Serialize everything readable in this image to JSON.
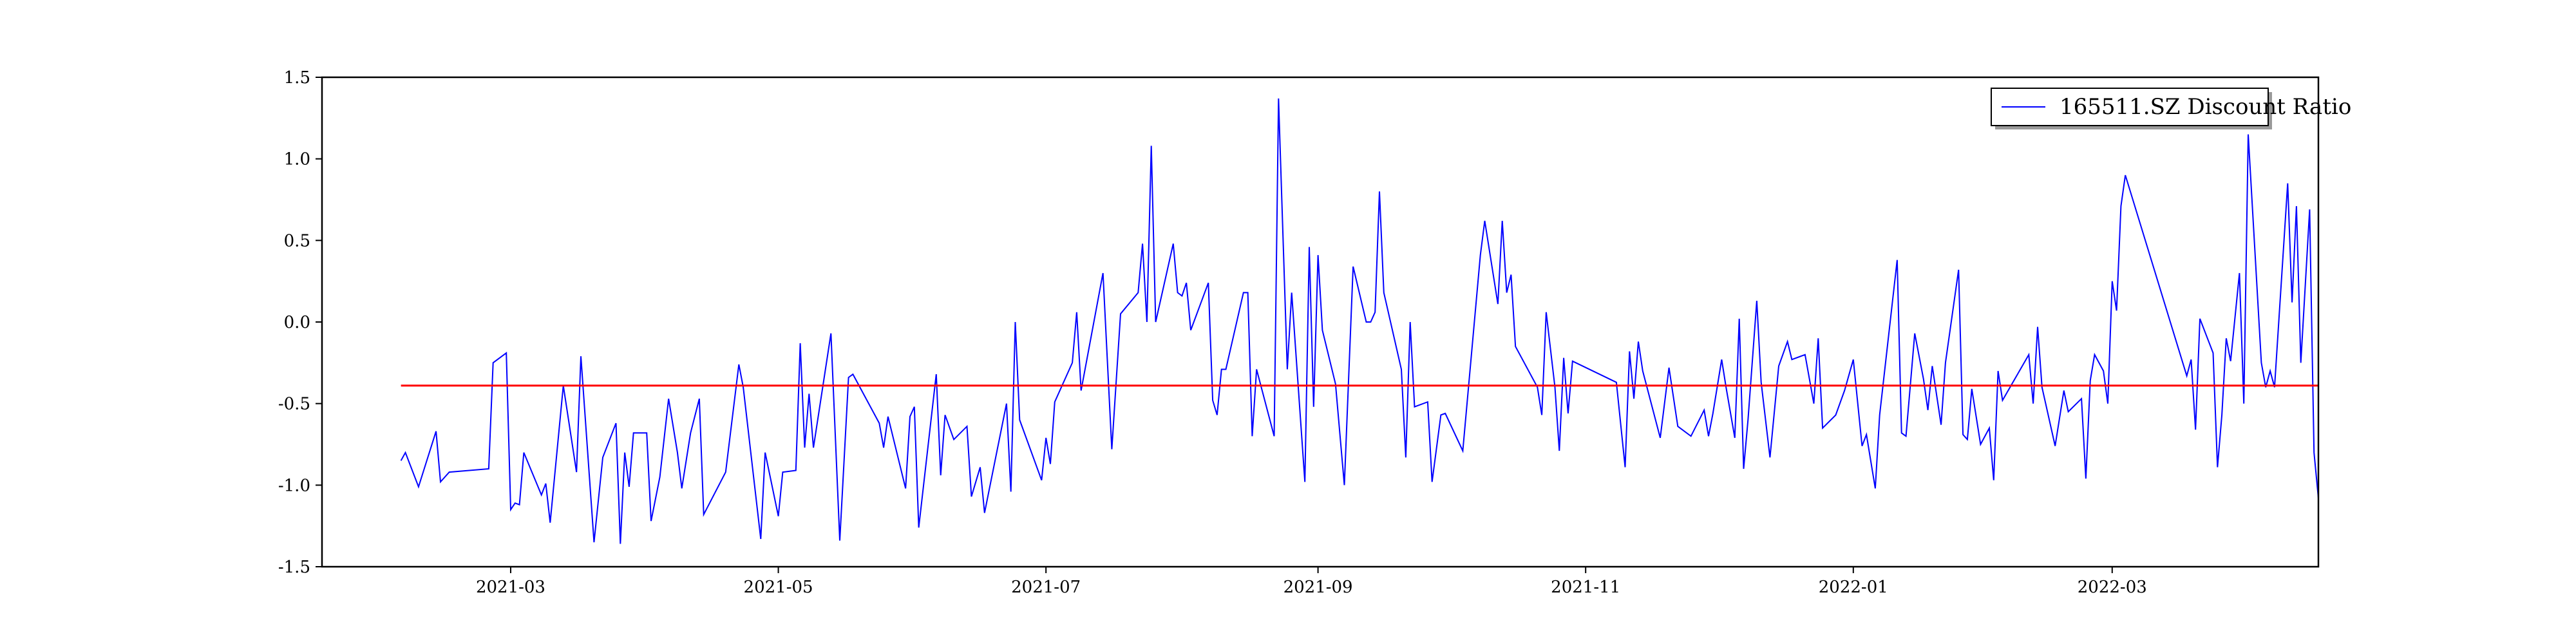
{
  "chart_data": {
    "type": "line",
    "title": "",
    "xlabel": "",
    "ylabel": "",
    "x_ticks": [
      "2021-03",
      "2021-05",
      "2021-07",
      "2021-09",
      "2021-11",
      "2022-01",
      "2022-03"
    ],
    "y_ticks": [
      "-1.5",
      "-1.0",
      "-0.5",
      "0.0",
      "0.5",
      "1.0",
      "1.5"
    ],
    "xlim": [
      "2021-01-17",
      "2022-04-17"
    ],
    "ylim": [
      -1.5,
      1.5
    ],
    "grid": false,
    "legend": {
      "position": "top-right",
      "entries": [
        "165511.SZ Discount Ratio"
      ]
    },
    "reference_line": {
      "value": -0.39,
      "color": "#ff0000"
    },
    "series": [
      {
        "name": "165511.SZ Discount Ratio",
        "color": "#0000ff",
        "points": [
          [
            "2021-02-04",
            -0.85
          ],
          [
            "2021-02-05",
            -0.8
          ],
          [
            "2021-02-08",
            -1.01
          ],
          [
            "2021-02-12",
            -0.67
          ],
          [
            "2021-02-13",
            -0.98
          ],
          [
            "2021-02-15",
            -0.92
          ],
          [
            "2021-02-24",
            -0.9
          ],
          [
            "2021-02-25",
            -0.25
          ],
          [
            "2021-02-28",
            -0.19
          ],
          [
            "2021-03-01",
            -1.15
          ],
          [
            "2021-03-02",
            -1.11
          ],
          [
            "2021-03-03",
            -1.12
          ],
          [
            "2021-03-04",
            -0.8
          ],
          [
            "2021-03-08",
            -1.06
          ],
          [
            "2021-03-09",
            -0.99
          ],
          [
            "2021-03-10",
            -1.23
          ],
          [
            "2021-03-13",
            -0.39
          ],
          [
            "2021-03-16",
            -0.92
          ],
          [
            "2021-03-17",
            -0.21
          ],
          [
            "2021-03-20",
            -1.35
          ],
          [
            "2021-03-22",
            -0.83
          ],
          [
            "2021-03-25",
            -0.62
          ],
          [
            "2021-03-26",
            -1.36
          ],
          [
            "2021-03-27",
            -0.8
          ],
          [
            "2021-03-28",
            -1.01
          ],
          [
            "2021-03-29",
            -0.68
          ],
          [
            "2021-04-01",
            -0.68
          ],
          [
            "2021-04-02",
            -1.22
          ],
          [
            "2021-04-04",
            -0.95
          ],
          [
            "2021-04-06",
            -0.47
          ],
          [
            "2021-04-08",
            -0.8
          ],
          [
            "2021-04-09",
            -1.02
          ],
          [
            "2021-04-11",
            -0.68
          ],
          [
            "2021-04-13",
            -0.47
          ],
          [
            "2021-04-14",
            -1.18
          ],
          [
            "2021-04-19",
            -0.92
          ],
          [
            "2021-04-22",
            -0.26
          ],
          [
            "2021-04-23",
            -0.4
          ],
          [
            "2021-04-27",
            -1.33
          ],
          [
            "2021-04-28",
            -0.8
          ],
          [
            "2021-05-01",
            -1.19
          ],
          [
            "2021-05-02",
            -0.92
          ],
          [
            "2021-05-05",
            -0.91
          ],
          [
            "2021-05-06",
            -0.13
          ],
          [
            "2021-05-07",
            -0.77
          ],
          [
            "2021-05-08",
            -0.44
          ],
          [
            "2021-05-09",
            -0.77
          ],
          [
            "2021-05-13",
            -0.07
          ],
          [
            "2021-05-15",
            -1.34
          ],
          [
            "2021-05-17",
            -0.34
          ],
          [
            "2021-05-18",
            -0.32
          ],
          [
            "2021-05-24",
            -0.62
          ],
          [
            "2021-05-25",
            -0.77
          ],
          [
            "2021-05-26",
            -0.58
          ],
          [
            "2021-05-30",
            -1.02
          ],
          [
            "2021-05-31",
            -0.58
          ],
          [
            "2021-06-01",
            -0.52
          ],
          [
            "2021-06-02",
            -1.26
          ],
          [
            "2021-06-06",
            -0.32
          ],
          [
            "2021-06-07",
            -0.94
          ],
          [
            "2021-06-08",
            -0.57
          ],
          [
            "2021-06-10",
            -0.72
          ],
          [
            "2021-06-13",
            -0.64
          ],
          [
            "2021-06-14",
            -1.07
          ],
          [
            "2021-06-15",
            -0.98
          ],
          [
            "2021-06-16",
            -0.89
          ],
          [
            "2021-06-17",
            -1.17
          ],
          [
            "2021-06-22",
            -0.5
          ],
          [
            "2021-06-23",
            -1.04
          ],
          [
            "2021-06-24",
            0.0
          ],
          [
            "2021-06-25",
            -0.6
          ],
          [
            "2021-06-30",
            -0.97
          ],
          [
            "2021-07-01",
            -0.71
          ],
          [
            "2021-07-02",
            -0.87
          ],
          [
            "2021-07-03",
            -0.49
          ],
          [
            "2021-07-07",
            -0.25
          ],
          [
            "2021-07-08",
            0.06
          ],
          [
            "2021-07-09",
            -0.42
          ],
          [
            "2021-07-14",
            0.3
          ],
          [
            "2021-07-16",
            -0.78
          ],
          [
            "2021-07-18",
            0.05
          ],
          [
            "2021-07-22",
            0.18
          ],
          [
            "2021-07-23",
            0.48
          ],
          [
            "2021-07-24",
            0.0
          ],
          [
            "2021-07-25",
            1.08
          ],
          [
            "2021-07-26",
            0.0
          ],
          [
            "2021-07-30",
            0.48
          ],
          [
            "2021-07-31",
            0.18
          ],
          [
            "2021-08-01",
            0.16
          ],
          [
            "2021-08-02",
            0.24
          ],
          [
            "2021-08-03",
            -0.05
          ],
          [
            "2021-08-07",
            0.24
          ],
          [
            "2021-08-08",
            -0.48
          ],
          [
            "2021-08-09",
            -0.57
          ],
          [
            "2021-08-10",
            -0.29
          ],
          [
            "2021-08-11",
            -0.29
          ],
          [
            "2021-08-15",
            0.18
          ],
          [
            "2021-08-16",
            0.18
          ],
          [
            "2021-08-17",
            -0.7
          ],
          [
            "2021-08-18",
            -0.29
          ],
          [
            "2021-08-22",
            -0.7
          ],
          [
            "2021-08-23",
            1.37
          ],
          [
            "2021-08-25",
            -0.29
          ],
          [
            "2021-08-26",
            0.18
          ],
          [
            "2021-08-29",
            -0.98
          ],
          [
            "2021-08-30",
            0.46
          ],
          [
            "2021-08-31",
            -0.52
          ],
          [
            "2021-09-01",
            0.41
          ],
          [
            "2021-09-02",
            -0.05
          ],
          [
            "2021-09-05",
            -0.38
          ],
          [
            "2021-09-07",
            -1.0
          ],
          [
            "2021-09-09",
            0.34
          ],
          [
            "2021-09-12",
            0.0
          ],
          [
            "2021-09-13",
            0.0
          ],
          [
            "2021-09-14",
            0.06
          ],
          [
            "2021-09-15",
            0.8
          ],
          [
            "2021-09-16",
            0.18
          ],
          [
            "2021-09-20",
            -0.29
          ],
          [
            "2021-09-21",
            -0.83
          ],
          [
            "2021-09-22",
            0.0
          ],
          [
            "2021-09-23",
            -0.52
          ],
          [
            "2021-09-26",
            -0.49
          ],
          [
            "2021-09-27",
            -0.98
          ],
          [
            "2021-09-29",
            -0.57
          ],
          [
            "2021-09-30",
            -0.56
          ],
          [
            "2021-10-04",
            -0.79
          ],
          [
            "2021-10-08",
            0.41
          ],
          [
            "2021-10-09",
            0.62
          ],
          [
            "2021-10-12",
            0.11
          ],
          [
            "2021-10-13",
            0.62
          ],
          [
            "2021-10-14",
            0.18
          ],
          [
            "2021-10-15",
            0.29
          ],
          [
            "2021-10-16",
            -0.15
          ],
          [
            "2021-10-21",
            -0.4
          ],
          [
            "2021-10-22",
            -0.57
          ],
          [
            "2021-10-23",
            0.06
          ],
          [
            "2021-10-25",
            -0.4
          ],
          [
            "2021-10-26",
            -0.79
          ],
          [
            "2021-10-27",
            -0.22
          ],
          [
            "2021-10-28",
            -0.56
          ],
          [
            "2021-10-29",
            -0.24
          ],
          [
            "2021-11-08",
            -0.37
          ],
          [
            "2021-11-10",
            -0.89
          ],
          [
            "2021-11-11",
            -0.18
          ],
          [
            "2021-11-12",
            -0.47
          ],
          [
            "2021-11-13",
            -0.12
          ],
          [
            "2021-11-14",
            -0.3
          ],
          [
            "2021-11-18",
            -0.71
          ],
          [
            "2021-11-20",
            -0.28
          ],
          [
            "2021-11-22",
            -0.64
          ],
          [
            "2021-11-25",
            -0.7
          ],
          [
            "2021-11-28",
            -0.54
          ],
          [
            "2021-11-29",
            -0.7
          ],
          [
            "2021-11-30",
            -0.56
          ],
          [
            "2021-12-02",
            -0.23
          ],
          [
            "2021-12-03",
            -0.4
          ],
          [
            "2021-12-05",
            -0.71
          ],
          [
            "2021-12-06",
            0.02
          ],
          [
            "2021-12-07",
            -0.9
          ],
          [
            "2021-12-08",
            -0.6
          ],
          [
            "2021-12-10",
            0.13
          ],
          [
            "2021-12-11",
            -0.37
          ],
          [
            "2021-12-13",
            -0.83
          ],
          [
            "2021-12-15",
            -0.27
          ],
          [
            "2021-12-17",
            -0.12
          ],
          [
            "2021-12-18",
            -0.23
          ],
          [
            "2021-12-21",
            -0.2
          ],
          [
            "2021-12-23",
            -0.5
          ],
          [
            "2021-12-24",
            -0.1
          ],
          [
            "2021-12-25",
            -0.65
          ],
          [
            "2021-12-28",
            -0.57
          ],
          [
            "2021-12-30",
            -0.42
          ],
          [
            "2022-01-01",
            -0.23
          ],
          [
            "2022-01-03",
            -0.76
          ],
          [
            "2022-01-04",
            -0.69
          ],
          [
            "2022-01-06",
            -1.02
          ],
          [
            "2022-01-07",
            -0.57
          ],
          [
            "2022-01-11",
            0.38
          ],
          [
            "2022-01-12",
            -0.68
          ],
          [
            "2022-01-13",
            -0.7
          ],
          [
            "2022-01-15",
            -0.07
          ],
          [
            "2022-01-17",
            -0.35
          ],
          [
            "2022-01-18",
            -0.54
          ],
          [
            "2022-01-19",
            -0.27
          ],
          [
            "2022-01-21",
            -0.63
          ],
          [
            "2022-01-22",
            -0.25
          ],
          [
            "2022-01-25",
            0.32
          ],
          [
            "2022-01-26",
            -0.69
          ],
          [
            "2022-01-27",
            -0.72
          ],
          [
            "2022-01-28",
            -0.41
          ],
          [
            "2022-01-30",
            -0.75
          ],
          [
            "2022-02-01",
            -0.65
          ],
          [
            "2022-02-02",
            -0.97
          ],
          [
            "2022-02-03",
            -0.3
          ],
          [
            "2022-02-04",
            -0.48
          ],
          [
            "2022-02-10",
            -0.2
          ],
          [
            "2022-02-11",
            -0.5
          ],
          [
            "2022-02-12",
            -0.03
          ],
          [
            "2022-02-13",
            -0.4
          ],
          [
            "2022-02-16",
            -0.76
          ],
          [
            "2022-02-18",
            -0.42
          ],
          [
            "2022-02-19",
            -0.55
          ],
          [
            "2022-02-22",
            -0.47
          ],
          [
            "2022-02-23",
            -0.96
          ],
          [
            "2022-02-24",
            -0.36
          ],
          [
            "2022-02-25",
            -0.2
          ],
          [
            "2022-02-27",
            -0.3
          ],
          [
            "2022-02-28",
            -0.5
          ],
          [
            "2022-03-01",
            0.25
          ],
          [
            "2022-03-02",
            0.07
          ],
          [
            "2022-03-03",
            0.71
          ],
          [
            "2022-03-04",
            0.9
          ],
          [
            "2022-03-18",
            -0.33
          ],
          [
            "2022-03-19",
            -0.23
          ],
          [
            "2022-03-20",
            -0.66
          ],
          [
            "2022-03-21",
            0.02
          ],
          [
            "2022-03-24",
            -0.19
          ],
          [
            "2022-03-25",
            -0.89
          ],
          [
            "2022-03-26",
            -0.57
          ],
          [
            "2022-03-27",
            -0.1
          ],
          [
            "2022-03-28",
            -0.24
          ],
          [
            "2022-03-30",
            0.3
          ],
          [
            "2022-03-31",
            -0.5
          ],
          [
            "2022-04-01",
            1.15
          ],
          [
            "2022-04-04",
            -0.25
          ],
          [
            "2022-04-05",
            -0.4
          ],
          [
            "2022-04-06",
            -0.3
          ],
          [
            "2022-04-07",
            -0.4
          ],
          [
            "2022-04-10",
            0.85
          ],
          [
            "2022-04-11",
            0.12
          ],
          [
            "2022-04-12",
            0.71
          ],
          [
            "2022-04-13",
            -0.25
          ],
          [
            "2022-04-15",
            0.69
          ],
          [
            "2022-04-16",
            -0.8
          ],
          [
            "2022-04-17",
            -1.08
          ]
        ]
      }
    ]
  }
}
